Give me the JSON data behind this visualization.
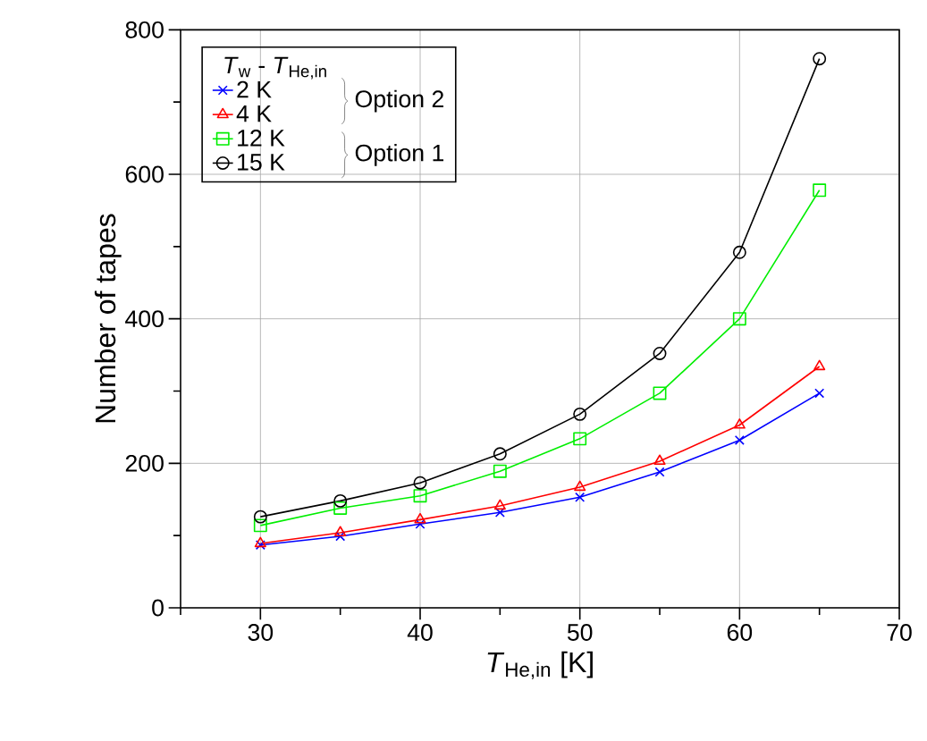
{
  "chart_data": {
    "type": "line",
    "xlabel": "*T*$_{He,in}$  [K]",
    "ylabel": "Number of tapes",
    "legend_title": "*T*$_{w}$ - *T*$_{He,in}$",
    "legend": "top left",
    "grid": true,
    "x": [
      30,
      35,
      40,
      45,
      50,
      55,
      60,
      65
    ],
    "xlim": [
      25,
      70
    ],
    "ylim": [
      0,
      800
    ],
    "xticks": [
      {
        "value": 25,
        "label": null
      },
      30,
      {
        "value": 35,
        "label": null
      },
      40,
      {
        "value": 45,
        "label": null
      },
      50,
      {
        "value": 55,
        "label": null
      },
      60,
      {
        "value": 65,
        "label": null
      },
      70
    ],
    "yticks": [
      0,
      {
        "value": 100,
        "label": null
      },
      200,
      {
        "value": 300,
        "label": null
      },
      400,
      {
        "value": 500,
        "label": null
      },
      600,
      {
        "value": 700,
        "label": null
      },
      800
    ],
    "annotations": [
      "Option 2",
      "Option 1"
    ],
    "series": [
      {
        "name": "2 K",
        "color": "#0000ff",
        "marker": "cross",
        "values": [
          87,
          99,
          116,
          132,
          153,
          188,
          232,
          297
        ]
      },
      {
        "name": "4 K",
        "color": "#ff0000",
        "marker": "triangle",
        "values": [
          89,
          104,
          122,
          141,
          167,
          203,
          253,
          334
        ]
      },
      {
        "name": "12 K",
        "color": "#00ee00",
        "marker": "square",
        "values": [
          114,
          138,
          155,
          189,
          234,
          297,
          400,
          578
        ]
      },
      {
        "name": "15 K",
        "color": "#000000",
        "marker": "circle",
        "values": [
          126,
          148,
          173,
          213,
          268,
          352,
          492,
          760
        ]
      }
    ]
  }
}
